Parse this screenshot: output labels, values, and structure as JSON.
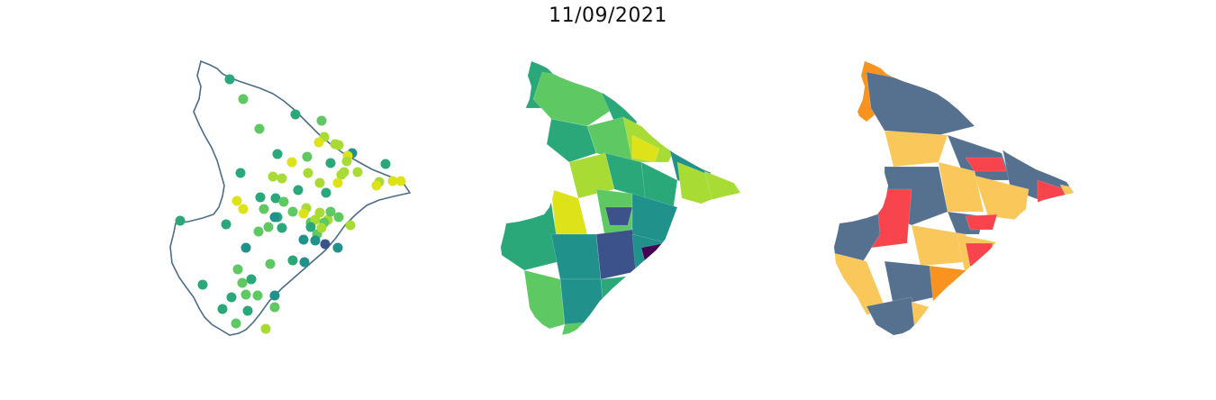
{
  "title": "11/09/2021",
  "colors": {
    "outline": "#4c6d8a",
    "viridis": [
      "#440154",
      "#3b528b",
      "#21918c",
      "#2aa87a",
      "#5ec962",
      "#a8db34",
      "#dde318"
    ],
    "categories": {
      "slate": "#56718f",
      "yellow": "#f9c75a",
      "orange": "#f7931e",
      "red": "#f8444c"
    }
  },
  "maps": [
    {
      "name": "station-points",
      "type": "point-map"
    },
    {
      "name": "municipality-choropleth",
      "type": "choropleth",
      "palette": "viridis"
    },
    {
      "name": "municipality-categories",
      "type": "categorical-choropleth",
      "categories": [
        "slate",
        "yellow",
        "orange",
        "red"
      ]
    }
  ]
}
